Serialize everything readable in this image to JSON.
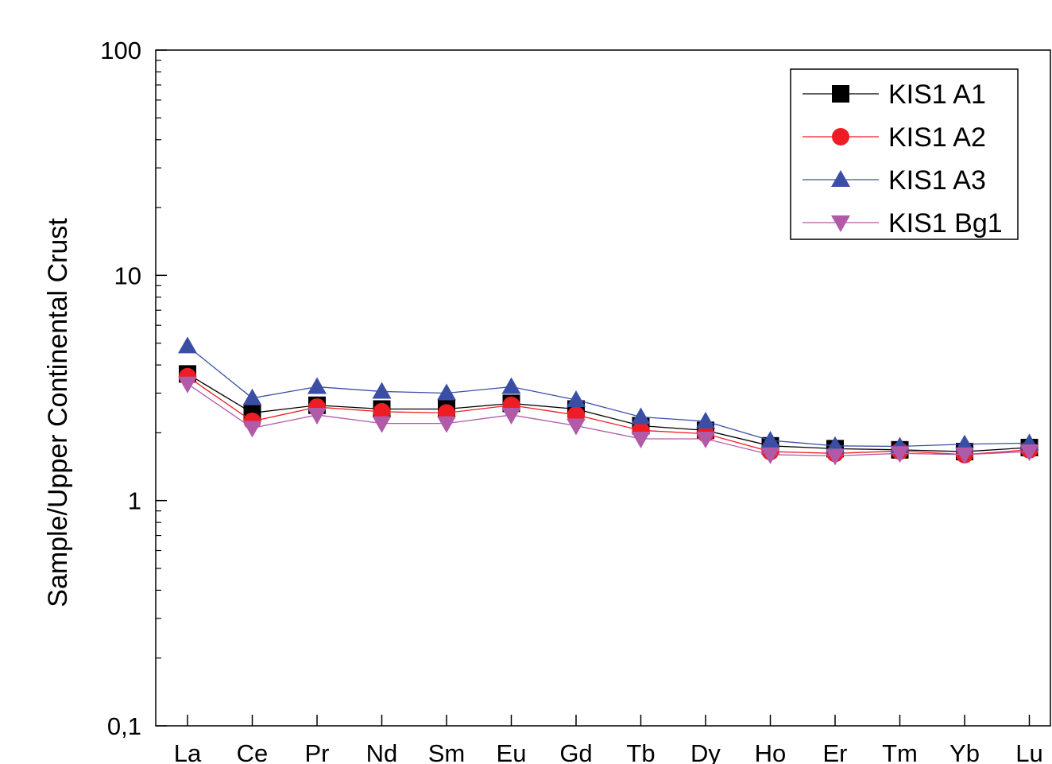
{
  "chart_data": {
    "type": "line",
    "title": "",
    "xlabel": "",
    "ylabel": "Sample/Upper Continental Crust",
    "yscale": "log",
    "ylim": [
      0.1,
      100
    ],
    "y_ticks": [
      0.1,
      1,
      10,
      100
    ],
    "y_tick_labels": [
      "0,1",
      "1",
      "10",
      "100"
    ],
    "grid": false,
    "legend_position": "top-right",
    "categories": [
      "La",
      "Ce",
      "Pr",
      "Nd",
      "Sm",
      "Eu",
      "Gd",
      "Tb",
      "Dy",
      "Ho",
      "Er",
      "Tm",
      "Yb",
      "Lu"
    ],
    "series": [
      {
        "name": "KIS1 A1",
        "marker": "square",
        "color": "#000000",
        "line_color": "#000000",
        "values": [
          3.65,
          2.45,
          2.65,
          2.55,
          2.55,
          2.7,
          2.55,
          2.15,
          2.05,
          1.75,
          1.7,
          1.68,
          1.65,
          1.72
        ]
      },
      {
        "name": "KIS1 A2",
        "marker": "circle",
        "color": "#ee1c24",
        "line_color": "#ee1c24",
        "values": [
          3.55,
          2.25,
          2.6,
          2.48,
          2.45,
          2.65,
          2.4,
          2.05,
          1.98,
          1.65,
          1.62,
          1.66,
          1.6,
          1.68
        ]
      },
      {
        "name": "KIS1 A3",
        "marker": "triangle-up",
        "color": "#3b4ea6",
        "line_color": "#3b4ea6",
        "values": [
          4.85,
          2.85,
          3.2,
          3.05,
          3.0,
          3.2,
          2.8,
          2.35,
          2.25,
          1.85,
          1.75,
          1.74,
          1.78,
          1.8
        ]
      },
      {
        "name": "KIS1 Bg1",
        "marker": "triangle-down",
        "color": "#b05aa8",
        "line_color": "#b05aa8",
        "values": [
          3.3,
          2.1,
          2.4,
          2.2,
          2.2,
          2.4,
          2.15,
          1.88,
          1.88,
          1.6,
          1.58,
          1.62,
          1.6,
          1.65
        ]
      }
    ]
  }
}
